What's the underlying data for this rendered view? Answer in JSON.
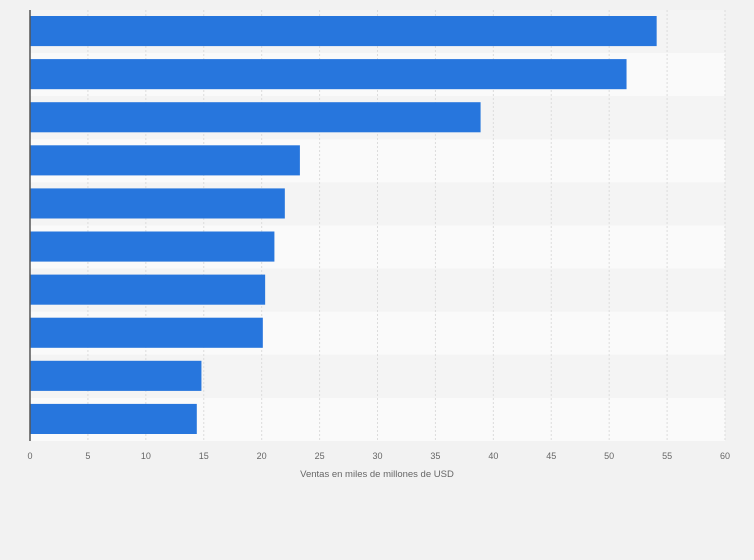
{
  "chart_data": {
    "type": "bar",
    "orientation": "horizontal",
    "categories": [
      "",
      "",
      "",
      "",
      "",
      "",
      "",
      "",
      "",
      ""
    ],
    "values": [
      54.1,
      51.5,
      38.9,
      23.3,
      22.0,
      21.1,
      20.3,
      20.1,
      14.8,
      14.4
    ],
    "title": "",
    "xlabel": "Ventas en miles de millones de USD",
    "ylabel": "",
    "xlim": [
      0,
      60
    ],
    "xticks": [
      "0",
      "5",
      "10",
      "15",
      "20",
      "25",
      "30",
      "35",
      "40",
      "45",
      "50",
      "55",
      "60"
    ],
    "grid": true,
    "bar_color": "#2776dd"
  }
}
